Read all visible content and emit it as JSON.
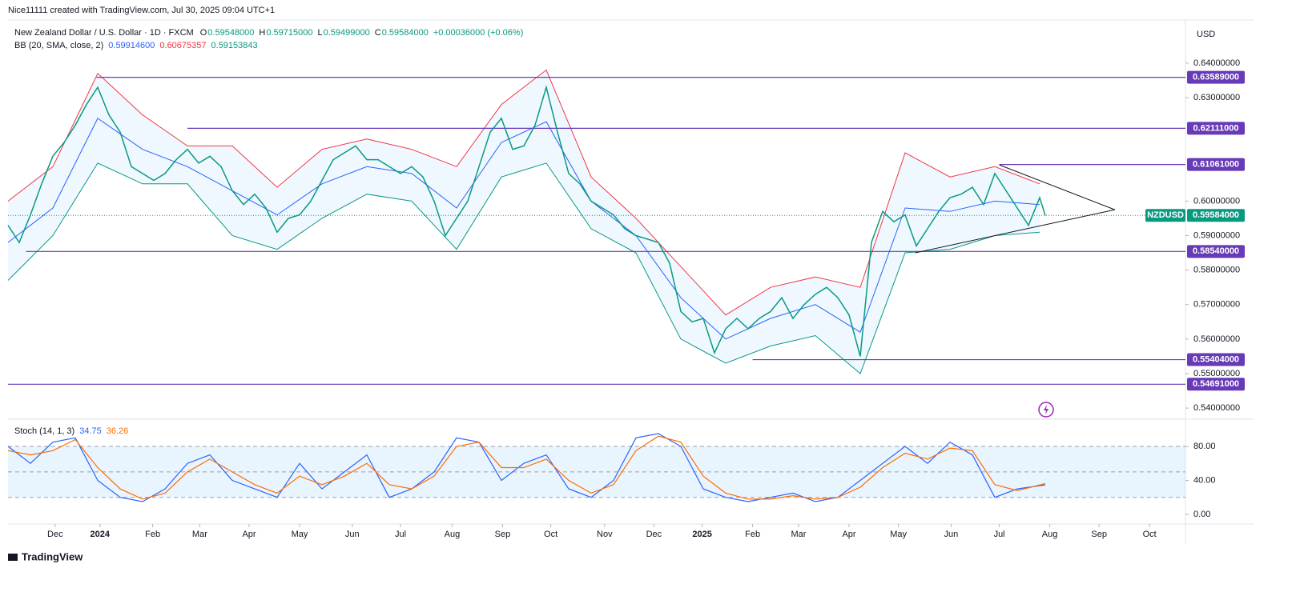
{
  "chart_data": {
    "type": "line",
    "credit": "Nice11111 created with TradingView.com, Jul 30, 2025 09:04 UTC+1",
    "title": "New Zealand Dollar / U.S. Dollar · 1D · FXCM",
    "ohlc": [
      {
        "label": "O",
        "value": "0.59548000"
      },
      {
        "label": "H",
        "value": "0.59715000"
      },
      {
        "label": "L",
        "value": "0.59499000"
      },
      {
        "label": "C",
        "value": "0.59584000"
      }
    ],
    "change": "+0.00036000 (+0.06%)",
    "currency": "USD",
    "brand": "TradingView",
    "xlim": [
      0,
      105
    ],
    "xticks": [
      {
        "value": 4.2,
        "label": "Dec"
      },
      {
        "value": 8.2,
        "label": "2024"
      },
      {
        "value": 12.9,
        "label": "Feb"
      },
      {
        "value": 17.1,
        "label": "Mar"
      },
      {
        "value": 21.5,
        "label": "Apr"
      },
      {
        "value": 26,
        "label": "May"
      },
      {
        "value": 30.7,
        "label": "Jun"
      },
      {
        "value": 35,
        "label": "Jul"
      },
      {
        "value": 39.6,
        "label": "Aug"
      },
      {
        "value": 44.1,
        "label": "Sep"
      },
      {
        "value": 48.4,
        "label": "Oct"
      },
      {
        "value": 53.2,
        "label": "Nov"
      },
      {
        "value": 57.6,
        "label": "Dec"
      },
      {
        "value": 61.9,
        "label": "2025"
      },
      {
        "value": 66.4,
        "label": "Feb"
      },
      {
        "value": 70.5,
        "label": "Mar"
      },
      {
        "value": 75,
        "label": "Apr"
      },
      {
        "value": 79.4,
        "label": "May"
      },
      {
        "value": 84.1,
        "label": "Jun"
      },
      {
        "value": 88.4,
        "label": "Jul"
      },
      {
        "value": 92.9,
        "label": "Aug"
      },
      {
        "value": 97.3,
        "label": "Sep"
      },
      {
        "value": 101.8,
        "label": "Oct"
      }
    ],
    "ylim": [
      0.5377,
      0.6525
    ],
    "yticks": [
      {
        "value": 0.64,
        "label": "0.64000000"
      },
      {
        "value": 0.63,
        "label": "0.63000000"
      },
      {
        "value": 0.6,
        "label": "0.60000000"
      },
      {
        "value": 0.59,
        "label": "0.59000000"
      },
      {
        "value": 0.58,
        "label": "0.58000000"
      },
      {
        "value": 0.57,
        "label": "0.57000000"
      },
      {
        "value": 0.56,
        "label": "0.56000000"
      },
      {
        "value": 0.55,
        "label": "0.55000000"
      },
      {
        "value": 0.54,
        "label": "0.54000000"
      }
    ],
    "x": [
      0,
      1,
      2,
      3,
      4,
      5,
      6,
      7,
      8,
      9,
      10,
      11,
      12,
      13,
      14,
      15,
      16,
      17,
      18,
      19,
      20,
      21,
      22,
      23,
      24,
      25,
      26,
      27,
      28,
      29,
      30,
      31,
      32,
      33,
      34,
      35,
      36,
      37,
      38,
      39,
      40,
      41,
      42,
      43,
      44,
      45,
      46,
      47,
      48,
      49,
      50,
      51,
      52,
      53,
      54,
      55,
      56,
      57,
      58,
      59,
      60,
      61,
      62,
      63,
      64,
      65,
      66,
      67,
      68,
      69,
      70,
      71,
      72,
      73,
      74,
      75,
      76,
      77,
      78,
      79,
      80,
      81,
      82,
      83,
      84,
      85,
      86,
      87,
      88,
      89,
      90,
      91,
      92,
      92.5
    ],
    "series": [
      {
        "name": "NZDUSD",
        "color": "#089981",
        "values": [
          0.593,
          0.588,
          0.596,
          0.605,
          0.613,
          0.617,
          0.622,
          0.628,
          0.633,
          0.625,
          0.62,
          0.61,
          0.608,
          0.606,
          0.608,
          0.612,
          0.615,
          0.611,
          0.613,
          0.61,
          0.603,
          0.599,
          0.602,
          0.598,
          0.591,
          0.595,
          0.596,
          0.6,
          0.606,
          0.612,
          0.614,
          0.616,
          0.612,
          0.612,
          0.61,
          0.608,
          0.61,
          0.607,
          0.6,
          0.59,
          0.595,
          0.6,
          0.61,
          0.62,
          0.624,
          0.615,
          0.616,
          0.622,
          0.633,
          0.62,
          0.608,
          0.605,
          0.6,
          0.598,
          0.596,
          0.592,
          0.59,
          0.589,
          0.588,
          0.582,
          0.568,
          0.565,
          0.566,
          0.556,
          0.563,
          0.566,
          0.563,
          0.566,
          0.568,
          0.572,
          0.566,
          0.57,
          0.573,
          0.575,
          0.572,
          0.567,
          0.555,
          0.588,
          0.597,
          0.594,
          0.596,
          0.587,
          0.592,
          0.597,
          0.601,
          0.602,
          0.604,
          0.599,
          0.608,
          0.603,
          0.598,
          0.593,
          0.601,
          0.59584
        ],
        "value_label": "0.59584000"
      }
    ],
    "bb": {
      "label": "BB (20, SMA, close, 2)",
      "readout": [
        {
          "value": "0.59914600",
          "color": "#2962ff"
        },
        {
          "value": "0.60675357",
          "color": "#f23645"
        },
        {
          "value": "0.59153843",
          "color": "#089981"
        }
      ],
      "fill": "#2196f3",
      "x": [
        0,
        4,
        8,
        12,
        16,
        20,
        24,
        28,
        32,
        36,
        40,
        44,
        48,
        52,
        56,
        60,
        64,
        68,
        72,
        76,
        80,
        84,
        88,
        92
      ],
      "middle": {
        "color": "#2962ff",
        "values": [
          0.588,
          0.598,
          0.624,
          0.615,
          0.61,
          0.603,
          0.596,
          0.605,
          0.61,
          0.608,
          0.598,
          0.617,
          0.623,
          0.6,
          0.59,
          0.572,
          0.56,
          0.566,
          0.57,
          0.562,
          0.598,
          0.597,
          0.6,
          0.599
        ]
      },
      "upper": {
        "color": "#f23645",
        "values": [
          0.6,
          0.61,
          0.637,
          0.625,
          0.616,
          0.616,
          0.604,
          0.615,
          0.618,
          0.615,
          0.61,
          0.628,
          0.638,
          0.607,
          0.595,
          0.581,
          0.567,
          0.575,
          0.578,
          0.575,
          0.614,
          0.607,
          0.61,
          0.605
        ]
      },
      "lower": {
        "color": "#089981",
        "values": [
          0.577,
          0.59,
          0.611,
          0.605,
          0.605,
          0.59,
          0.586,
          0.595,
          0.602,
          0.6,
          0.586,
          0.607,
          0.611,
          0.592,
          0.585,
          0.56,
          0.553,
          0.558,
          0.561,
          0.55,
          0.585,
          0.586,
          0.59,
          0.591
        ]
      }
    },
    "levels": {
      "color": "#673ab7",
      "items": [
        {
          "value": 0.63589,
          "label": "0.63589000",
          "start_x": 7.9
        },
        {
          "value": 0.62111,
          "label": "0.62111000",
          "start_x": 16
        },
        {
          "value": 0.61061,
          "label": "0.61061000",
          "start_x": 88.4
        },
        {
          "value": 0.5854,
          "label": "0.58540000",
          "start_x": 1.6
        },
        {
          "value": 0.55404,
          "label": "0.55404000",
          "start_x": 66.4
        },
        {
          "value": 0.54691,
          "label": "0.54691000",
          "start_x": 0
        }
      ]
    },
    "triangle": {
      "x": [
        80.9,
        98.7,
        88.4
      ],
      "y": [
        0.585,
        0.5975,
        0.6105
      ]
    },
    "stoch": {
      "label": "Stoch (14, 1, 3)",
      "ylim": [
        -11.3,
        108.2
      ],
      "yticks": [
        {
          "value": 80,
          "label": "80.00"
        },
        {
          "value": 40,
          "label": "40.00"
        },
        {
          "value": 0,
          "label": "0.00"
        }
      ],
      "band": [
        80,
        20
      ],
      "band_lines": [
        80,
        50,
        20
      ],
      "x": [
        0,
        2,
        4,
        6,
        8,
        10,
        12,
        14,
        16,
        18,
        20,
        22,
        24,
        26,
        28,
        30,
        32,
        34,
        36,
        38,
        40,
        42,
        44,
        46,
        48,
        50,
        52,
        54,
        56,
        58,
        60,
        62,
        64,
        66,
        68,
        70,
        72,
        74,
        76,
        78,
        80,
        82,
        84,
        86,
        88,
        90,
        92.5
      ],
      "k": {
        "color": "#2962ff",
        "value_label": "34.75",
        "values": [
          80,
          60,
          85,
          90,
          40,
          20,
          15,
          30,
          60,
          70,
          40,
          30,
          20,
          60,
          30,
          50,
          70,
          20,
          30,
          50,
          90,
          85,
          40,
          60,
          70,
          30,
          20,
          40,
          90,
          95,
          80,
          30,
          20,
          15,
          20,
          25,
          15,
          20,
          40,
          60,
          80,
          60,
          85,
          70,
          20,
          30,
          34.75
        ]
      },
      "d": {
        "color": "#ff6d00",
        "value_label": "36.26",
        "values": [
          75,
          70,
          75,
          88,
          55,
          30,
          18,
          25,
          50,
          65,
          50,
          35,
          25,
          45,
          35,
          45,
          60,
          35,
          30,
          45,
          80,
          85,
          55,
          55,
          65,
          40,
          25,
          35,
          75,
          92,
          85,
          45,
          25,
          18,
          18,
          22,
          18,
          20,
          32,
          55,
          72,
          65,
          78,
          75,
          35,
          28,
          36.26
        ]
      }
    }
  }
}
